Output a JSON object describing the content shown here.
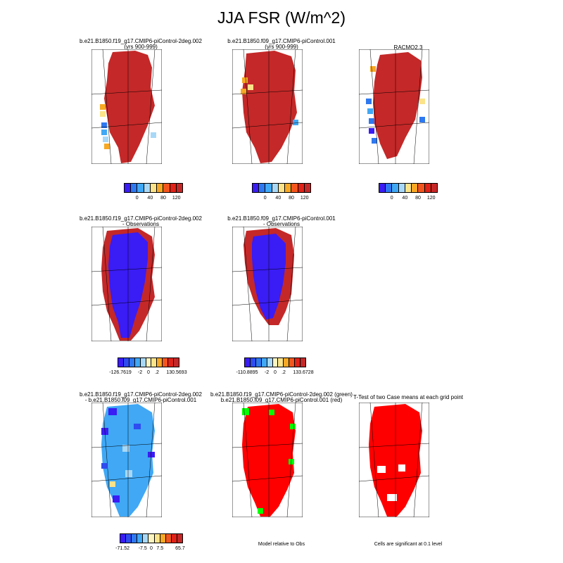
{
  "title": "JJA FSR (W/m^2)",
  "chart_data": [
    {
      "type": "heatmap",
      "title": "b.e21.B1850.f19_g17.CMIP6-piControl-2deg.002",
      "subtitle": "(yrs 900-999)",
      "colorbar_ticks": [
        "0",
        "40",
        "80",
        "120"
      ],
      "colors": [
        "#3a1cf5",
        "#2e78f0",
        "#40a8f5",
        "#a8d8f8",
        "#fbe38a",
        "#f7a824",
        "#f2561e",
        "#e02218",
        "#c42828"
      ]
    },
    {
      "type": "heatmap",
      "title": "b.e21.B1850.f09_g17.CMIP6-piControl.001",
      "subtitle": "(yrs 900-999)",
      "colorbar_ticks": [
        "0",
        "40",
        "80",
        "120"
      ],
      "colors": [
        "#3a1cf5",
        "#2e78f0",
        "#40a8f5",
        "#a8d8f8",
        "#fbe38a",
        "#f7a824",
        "#f2561e",
        "#e02218",
        "#c42828"
      ]
    },
    {
      "type": "heatmap",
      "title": "RACMO2.3",
      "subtitle": "",
      "colorbar_ticks": [
        "0",
        "40",
        "80",
        "120"
      ],
      "colors": [
        "#3a1cf5",
        "#2e78f0",
        "#40a8f5",
        "#a8d8f8",
        "#fbe38a",
        "#f7a824",
        "#f2561e",
        "#e02218",
        "#c42828"
      ]
    },
    {
      "type": "heatmap",
      "title": "b.e21.B1850.f19_g17.CMIP6-piControl-2deg.002",
      "subtitle": "- Observations",
      "colorbar_ticks": [
        "-126.7619",
        "-2",
        "0",
        ".2",
        "130.5693"
      ],
      "colors": [
        "#3a1cf5",
        "#2e4cf0",
        "#2e78f0",
        "#40a8f5",
        "#a8d8f8",
        "#fbf4c0",
        "#fbe38a",
        "#f7a824",
        "#f2561e",
        "#e02218",
        "#c42828"
      ]
    },
    {
      "type": "heatmap",
      "title": "b.e21.B1850.f09_g17.CMIP6-piControl.001",
      "subtitle": "- Observations",
      "colorbar_ticks": [
        "-110.8895",
        "-2",
        "0",
        ".2",
        "133.6728"
      ],
      "colors": [
        "#3a1cf5",
        "#2e4cf0",
        "#2e78f0",
        "#40a8f5",
        "#a8d8f8",
        "#fbf4c0",
        "#fbe38a",
        "#f7a824",
        "#f2561e",
        "#e02218",
        "#c42828"
      ]
    },
    {
      "type": "heatmap",
      "title": "b.e21.B1850.f19_g17.CMIP6-piControl-2deg.002",
      "subtitle": "- b.e21.B1850.f09_g17.CMIP6-piControl.001",
      "colorbar_ticks": [
        "-71.52",
        "-7.5",
        "0",
        "7.5",
        "65.7"
      ],
      "colors": [
        "#3a1cf5",
        "#2e4cf0",
        "#2e78f0",
        "#40a8f5",
        "#a8d8f8",
        "#fbf4c0",
        "#fbe38a",
        "#f7a824",
        "#f2561e",
        "#e02218",
        "#c42828"
      ]
    },
    {
      "type": "heatmap",
      "title": "b.e21.B1850.f19_g17.CMIP6-piControl-2deg.002 (green)",
      "subtitle": "b.e21.B1850.f09_g17.CMIP6-piControl.001 (red)",
      "note": "Model relative to Obs",
      "colors": [
        "#ff0000",
        "#00ff00"
      ]
    },
    {
      "type": "heatmap",
      "title": "T-Test of two Case means at each grid point",
      "subtitle": "",
      "note": "Cells are significant at 0.1 level",
      "colors": [
        "#ff0000"
      ]
    }
  ]
}
